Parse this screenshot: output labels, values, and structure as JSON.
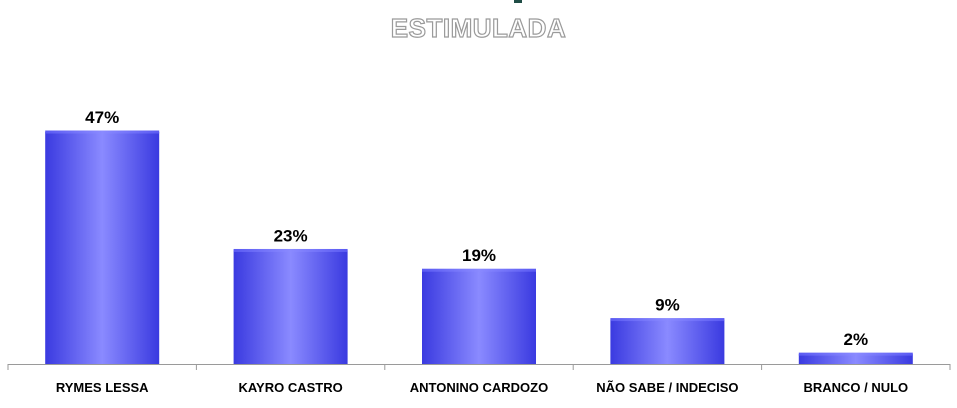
{
  "chart_data": {
    "type": "bar",
    "title": "ESTIMULADA",
    "categories": [
      "RYMES LESSA",
      "KAYRO CASTRO",
      "ANTONINO CARDOZO",
      "NÃO SABE / INDECISO",
      "BRANCO / NULO"
    ],
    "values": [
      47,
      23,
      19,
      9,
      2
    ],
    "value_labels": [
      "47%",
      "23%",
      "19%",
      "9%",
      "2%"
    ],
    "xlabel": "",
    "ylabel": "",
    "ylim": [
      0,
      50
    ],
    "grid": false,
    "legend": "none",
    "bar_color": "#5a5af2",
    "bar_highlight_color": "#8a8aff",
    "bar_shade_color": "#3a3ae0"
  }
}
